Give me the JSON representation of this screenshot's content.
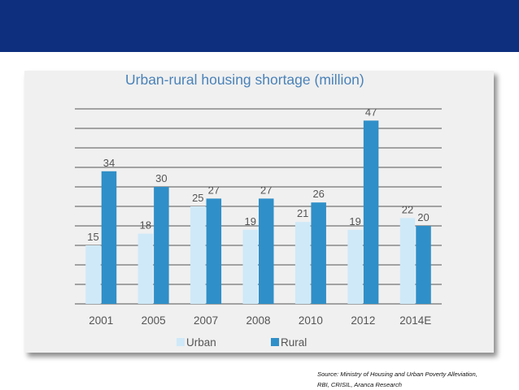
{
  "colors": {
    "banner": "#0d2f7e",
    "panel": "#f0f0f0",
    "title": "#4a82b8",
    "urban": "#cfe9f8",
    "rural": "#2f8fc8",
    "gridline": "#555555",
    "label": "#555555"
  },
  "chart_data": {
    "type": "bar",
    "title": "Urban-rural housing shortage (million)",
    "xlabel": "",
    "ylabel": "",
    "categories": [
      "2001",
      "2005",
      "2007",
      "2008",
      "2010",
      "2012",
      "2014E"
    ],
    "series": [
      {
        "name": "Urban",
        "values": [
          15,
          18,
          25,
          19,
          21,
          19,
          22
        ]
      },
      {
        "name": "Rural",
        "values": [
          34,
          30,
          27,
          27,
          26,
          47,
          20
        ]
      }
    ],
    "ylim": [
      0,
      50
    ],
    "grid": true,
    "data_labels": true,
    "legend": "bottom-left"
  },
  "source_note": "Source: Ministry of Housing and Urban Poverty Alleviation, RBI, CRISIL, Aranca Research"
}
